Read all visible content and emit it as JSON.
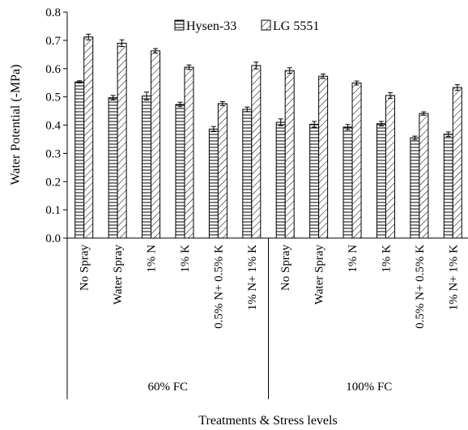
{
  "chart_data": {
    "type": "bar",
    "xlabel": "Treatments & Stress levels",
    "ylabel": "Water Potential (-MPa)",
    "ylim": [
      0,
      0.8
    ],
    "yticks": [
      "0.0",
      "0.1",
      "0.2",
      "0.3",
      "0.4",
      "0.5",
      "0.6",
      "0.7",
      "0.8"
    ],
    "groups": [
      {
        "label": "60% FC",
        "categories": [
          "No Spray",
          "Water Spray",
          "1% N",
          "1% K",
          "0.5% N+ 0.5% K",
          "1% N+ 1% K"
        ]
      },
      {
        "label": "100% FC",
        "categories": [
          "No Spray",
          "Water Spray",
          "1% N",
          "1% K",
          "0.5% N+ 0.5% K",
          "1% N+ 1% K"
        ]
      }
    ],
    "series": [
      {
        "name": "Hysen-33",
        "pattern": "horizontal-lines",
        "values": [
          0.553,
          0.497,
          0.503,
          0.473,
          0.386,
          0.456,
          0.41,
          0.403,
          0.393,
          0.405,
          0.355,
          0.368
        ],
        "errors": [
          0.004,
          0.008,
          0.014,
          0.008,
          0.009,
          0.008,
          0.012,
          0.01,
          0.009,
          0.008,
          0.006,
          0.008
        ]
      },
      {
        "name": "LG 5551",
        "pattern": "diagonal-lines",
        "values": [
          0.712,
          0.69,
          0.663,
          0.605,
          0.476,
          0.611,
          0.593,
          0.573,
          0.549,
          0.505,
          0.441,
          0.533
        ],
        "errors": [
          0.01,
          0.012,
          0.008,
          0.008,
          0.007,
          0.012,
          0.01,
          0.008,
          0.007,
          0.01,
          0.006,
          0.01
        ]
      }
    ],
    "legend_position": "top-center",
    "grid": false
  }
}
